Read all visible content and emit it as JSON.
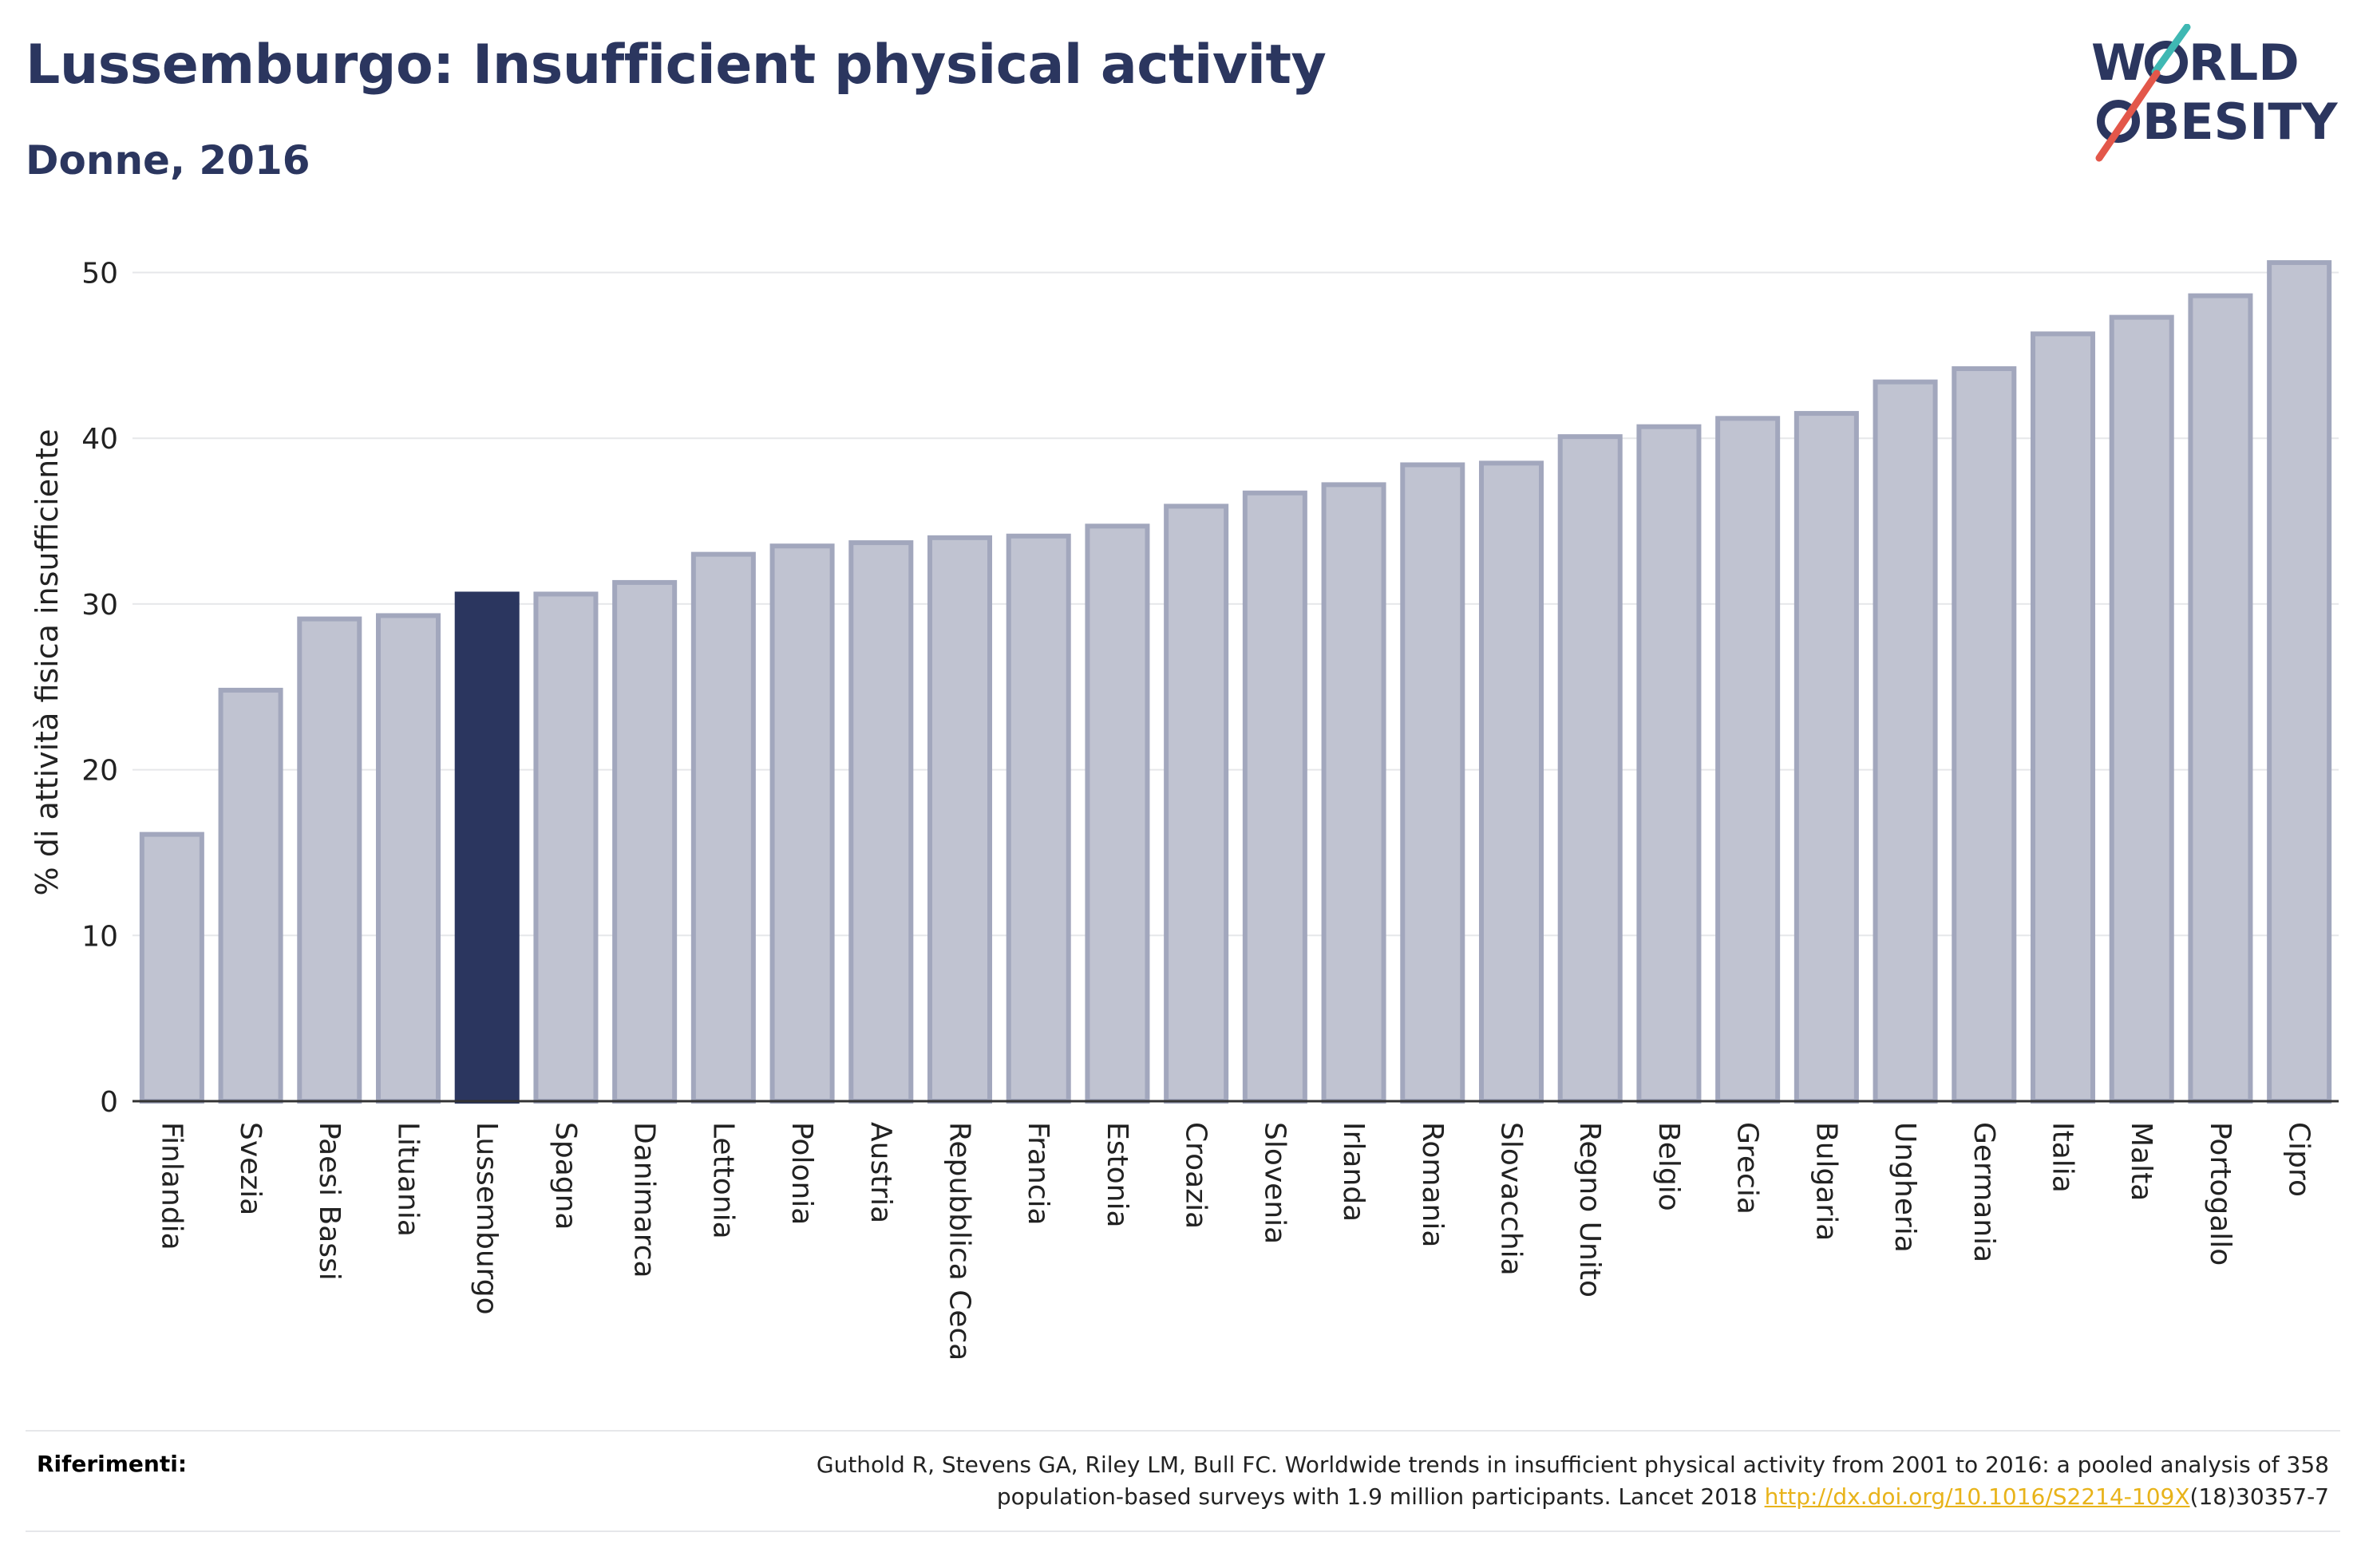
{
  "header": {
    "title": "Lussemburgo: Insufficient physical activity",
    "subtitle": "Donne, 2016"
  },
  "logo": {
    "line1_a": "W",
    "line1_b": "RLD",
    "line2_a": "",
    "line2_b": "BESITY",
    "colors": {
      "text": "#2b365f",
      "slash_teal": "#3fb8b3",
      "slash_red": "#e3574a"
    }
  },
  "chart_data": {
    "type": "bar",
    "title": "",
    "xlabel": "",
    "ylabel": "% di attività fisica insufficiente",
    "ylim": [
      0,
      52
    ],
    "yticks": [
      0,
      10,
      20,
      30,
      40,
      50
    ],
    "grid": true,
    "highlight": "Lussemburgo",
    "colors": {
      "bar": "#c0c3d1",
      "bar_edge": "#a2a7bd",
      "highlight": "#2b365f",
      "grid": "#e6e7ea",
      "axis": "#333333"
    },
    "categories": [
      "Finlandia",
      "Svezia",
      "Paesi Bassi",
      "Lituania",
      "Lussemburgo",
      "Spagna",
      "Danimarca",
      "Lettonia",
      "Polonia",
      "Austria",
      "Repubblica Ceca",
      "Francia",
      "Estonia",
      "Croazia",
      "Slovenia",
      "Irlanda",
      "Romania",
      "Slovacchia",
      "Regno Unito",
      "Belgio",
      "Grecia",
      "Bulgaria",
      "Ungheria",
      "Germania",
      "Italia",
      "Malta",
      "Portogallo",
      "Cipro"
    ],
    "values": [
      16.1,
      24.8,
      29.1,
      29.3,
      30.6,
      30.6,
      31.3,
      33.0,
      33.5,
      33.7,
      34.0,
      34.1,
      34.7,
      35.9,
      36.7,
      37.2,
      38.4,
      38.5,
      40.1,
      40.7,
      41.2,
      41.5,
      43.4,
      44.2,
      46.3,
      47.3,
      48.6,
      50.6
    ]
  },
  "references": {
    "label": "Riferimenti:",
    "line1": "Guthold R, Stevens GA, Riley LM, Bull FC. Worldwide trends in insufficient physical activity from 2001 to 2016: a pooled analysis of 358",
    "line2_pre": "population-based surveys with 1.9 million participants. Lancet 2018 ",
    "link": "http://dx.doi.org/10.1016/S2214-109X",
    "line2_post": "(18)30357-7"
  }
}
